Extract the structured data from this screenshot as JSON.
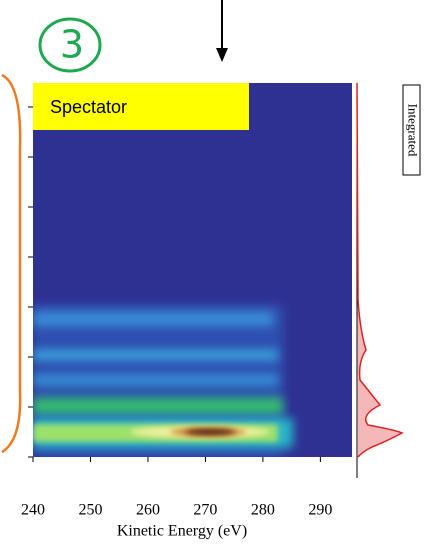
{
  "chart_data": {
    "type": "heatmap",
    "panel_number": "3",
    "annotation": "Spectator",
    "side_panel_label": "Integrated",
    "x_label": "Kinetic Energy (eV)",
    "xlim": [
      240,
      295.5
    ],
    "xticks": [
      240,
      250,
      260,
      270,
      280,
      290
    ]
  }
}
